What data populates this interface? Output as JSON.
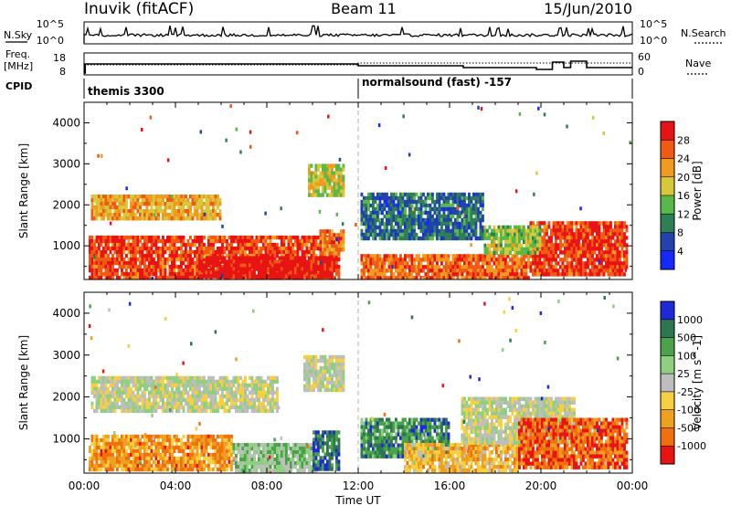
{
  "header": {
    "station": "Inuvik (fitACF)",
    "beam": "Beam 11",
    "date": "15/Jun/2010"
  },
  "strip_panels": {
    "nsky_label": "N.Sky",
    "nsky_top": "10^5",
    "nsky_bottom": "10^0",
    "nsearch_label": "N.Search",
    "nsearch_top": "10^5",
    "nsearch_bottom": "10^0",
    "freq_label": "Freq.",
    "freq_unit": "[MHz]",
    "freq_top": "18",
    "freq_bottom": "8",
    "nave_label": "Nave",
    "nave_top": "60",
    "nave_bottom": "0",
    "cpid_label": "CPID",
    "cpid_mode1": "themis 3300",
    "cpid_mode2": "normalsound (fast) -157"
  },
  "x_axis": {
    "label": "Time UT",
    "ticks": [
      "00:00",
      "04:00",
      "08:00",
      "12:00",
      "16:00",
      "20:00",
      "00:00"
    ]
  },
  "chart_data": [
    {
      "type": "heatmap",
      "title": "Power",
      "ylabel": "Slant Range [km]",
      "xlabel": "",
      "ylim": [
        180,
        4500
      ],
      "yticks": [
        1000,
        2000,
        3000,
        4000
      ],
      "colorbar": {
        "label": "Power [dB]",
        "ticks": [
          "4",
          "8",
          "12",
          "16",
          "20",
          "24",
          "28"
        ],
        "colors": [
          "#1428ff",
          "#2244aa",
          "#2f7f55",
          "#58b848",
          "#d6c83a",
          "#f09a20",
          "#f05a14",
          "#e81414"
        ]
      },
      "bands": [
        {
          "t0": 0.2,
          "t1": 11.2,
          "r0": 260,
          "r1": 1250,
          "level": 6.5
        },
        {
          "t0": 5.0,
          "t1": 10.8,
          "r0": 280,
          "r1": 750,
          "level": 7.5
        },
        {
          "t0": 0.3,
          "t1": 6.0,
          "r0": 1700,
          "r1": 2250,
          "level": 4.8
        },
        {
          "t0": 9.8,
          "t1": 11.4,
          "r0": 2200,
          "r1": 3000,
          "level": 3.8
        },
        {
          "t0": 10.3,
          "t1": 11.3,
          "r0": 800,
          "r1": 1400,
          "level": 5.5
        },
        {
          "t0": 12.1,
          "t1": 19.5,
          "r0": 250,
          "r1": 800,
          "level": 5.8
        },
        {
          "t0": 12.1,
          "t1": 17.5,
          "r0": 1200,
          "r1": 2300,
          "level": 1.6
        },
        {
          "t0": 19.5,
          "t1": 23.8,
          "r0": 350,
          "r1": 1600,
          "level": 6.5
        },
        {
          "t0": 17.5,
          "t1": 20.0,
          "r0": 800,
          "r1": 1500,
          "level": 3.5
        }
      ]
    },
    {
      "type": "heatmap",
      "title": "Velocity",
      "ylabel": "Slant Range [km]",
      "xlabel": "Time UT",
      "ylim": [
        180,
        4500
      ],
      "yticks": [
        1000,
        2000,
        3000,
        4000
      ],
      "colorbar": {
        "label": "Velocity [m s^-1]",
        "ticks": [
          "1000",
          "500",
          "100",
          "25",
          "-25",
          "-100",
          "-500",
          "-1000"
        ],
        "colors": [
          "#1e2ad8",
          "#2e7650",
          "#4aa24a",
          "#8fd080",
          "#bebebe",
          "#f6d040",
          "#f0a020",
          "#f07010",
          "#e81414"
        ]
      },
      "bands": [
        {
          "t0": 0.2,
          "t1": 6.5,
          "r0": 260,
          "r1": 1100,
          "level": 6.3
        },
        {
          "t0": 6.5,
          "t1": 10.2,
          "r0": 260,
          "r1": 900,
          "level": 3.2
        },
        {
          "t0": 0.3,
          "t1": 8.5,
          "r0": 1700,
          "r1": 2500,
          "level": 4.0
        },
        {
          "t0": 9.6,
          "t1": 11.4,
          "r0": 2200,
          "r1": 3000,
          "level": 4.0
        },
        {
          "t0": 10.0,
          "t1": 11.2,
          "r0": 300,
          "r1": 1200,
          "level": 1.2
        },
        {
          "t0": 12.1,
          "t1": 16.0,
          "r0": 600,
          "r1": 1500,
          "level": 1.5
        },
        {
          "t0": 14.0,
          "t1": 19.0,
          "r0": 250,
          "r1": 900,
          "level": 5.5
        },
        {
          "t0": 16.5,
          "t1": 21.5,
          "r0": 900,
          "r1": 2000,
          "level": 4.0
        },
        {
          "t0": 19.0,
          "t1": 23.8,
          "r0": 300,
          "r1": 1500,
          "level": 7.2
        }
      ]
    }
  ]
}
